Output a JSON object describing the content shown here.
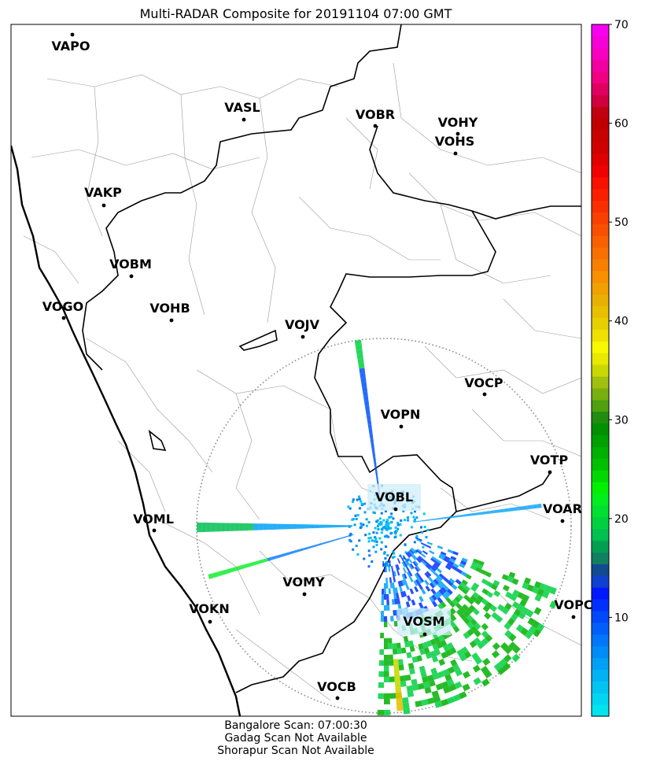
{
  "title": "Multi-RADAR Composite for 20191104 07:00 GMT",
  "footer": [
    "Bangalore Scan: 07:00:30",
    "Gadag Scan Not Available",
    "Shorapur Scan Not Available"
  ],
  "stations": [
    {
      "name": "VAPO"
    },
    {
      "name": "VASL"
    },
    {
      "name": "VOBR"
    },
    {
      "name": "VOHY"
    },
    {
      "name": "VOHS"
    },
    {
      "name": "VAKP"
    },
    {
      "name": "VOBM"
    },
    {
      "name": "VOGO"
    },
    {
      "name": "VOHB"
    },
    {
      "name": "VOJV"
    },
    {
      "name": "VOCP"
    },
    {
      "name": "VOPN"
    },
    {
      "name": "VOTP"
    },
    {
      "name": "VOBL"
    },
    {
      "name": "VOAR"
    },
    {
      "name": "VOML"
    },
    {
      "name": "VOMY"
    },
    {
      "name": "VOKN"
    },
    {
      "name": "VOPC"
    },
    {
      "name": "VOSM"
    },
    {
      "name": "VOCB"
    }
  ],
  "colorbar": {
    "min": 0,
    "max": 70,
    "ticks": [
      10,
      20,
      30,
      40,
      50,
      60,
      70
    ],
    "colors": [
      "#00e5ee",
      "#00d5f0",
      "#00c5f2",
      "#00b3f4",
      "#00a0f6",
      "#008cf8",
      "#0076fa",
      "#005ffb",
      "#0048fc",
      "#0030fd",
      "#0018fe",
      "#1040d0",
      "#104a90",
      "#108060",
      "#00a050",
      "#00c050",
      "#00d040",
      "#00e030",
      "#00ee20",
      "#00f000",
      "#00d800",
      "#00c000",
      "#00b000",
      "#00a000",
      "#009000",
      "#208c10",
      "#50a010",
      "#78b010",
      "#a0c010",
      "#c8d800",
      "#e8e800",
      "#f8f800",
      "#f0e000",
      "#e8d000",
      "#e8c000",
      "#e8b000",
      "#f0a000",
      "#f89000",
      "#f88000",
      "#f87000",
      "#f86000",
      "#f85000",
      "#f84000",
      "#f83000",
      "#f82000",
      "#f81000",
      "#f00000",
      "#e00000",
      "#d00000",
      "#c80000",
      "#c00000",
      "#c00010",
      "#d00040",
      "#e00060",
      "#f00080",
      "#f000a0",
      "#f800c0",
      "#f800d8",
      "#f800f0"
    ]
  }
}
